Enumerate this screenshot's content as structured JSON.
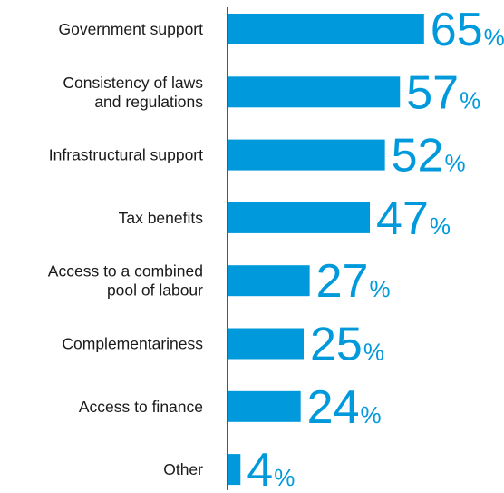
{
  "chart_data": {
    "type": "bar",
    "orientation": "horizontal",
    "categories": [
      "Government support",
      "Consistency of laws and regulations",
      "Infrastructural support",
      "Tax benefits",
      "Access to a combined pool of labour",
      "Complementariness",
      "Access to finance",
      "Other"
    ],
    "category_lines": [
      [
        "Government support"
      ],
      [
        "Consistency of laws",
        "and regulations"
      ],
      [
        "Infrastructural support"
      ],
      [
        "Tax benefits"
      ],
      [
        "Access to a combined",
        "pool of labour"
      ],
      [
        "Complementariness"
      ],
      [
        "Access to finance"
      ],
      [
        "Other"
      ]
    ],
    "values": [
      65,
      57,
      52,
      47,
      27,
      25,
      24,
      4
    ],
    "value_labels": [
      "65",
      "57",
      "52",
      "47",
      "27",
      "25",
      "24",
      "4"
    ],
    "unit_label": "%",
    "xlim": [
      0,
      100
    ],
    "bar_color": "#0099DB",
    "label_color": "#0099DB",
    "axis_color": "#555555",
    "grid": false
  }
}
